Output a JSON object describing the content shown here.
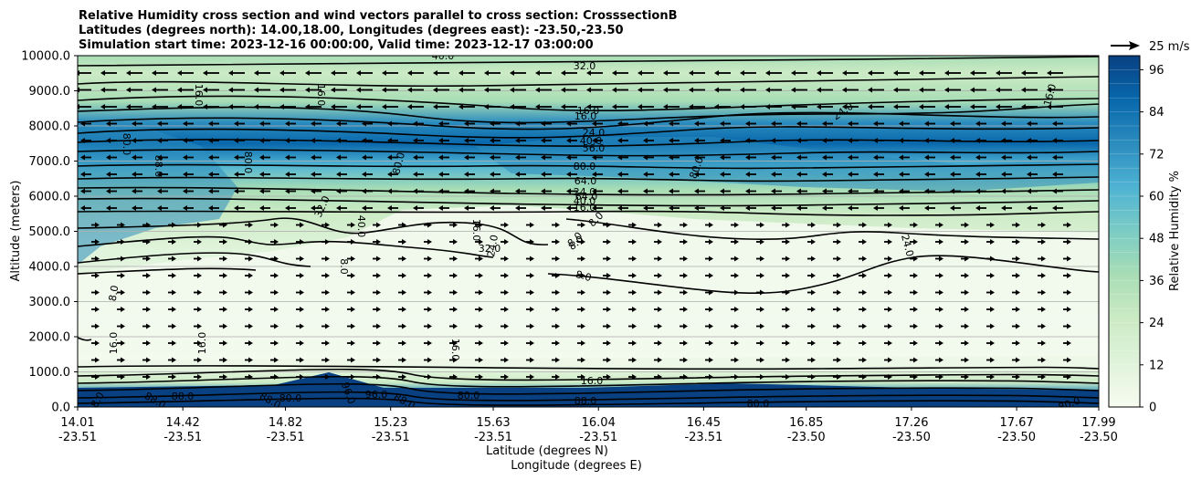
{
  "chart_data": {
    "type": "contour",
    "title_lines": [
      "Relative Humidity cross section and wind vectors parallel to cross section: CrosssectionB",
      "Latitudes (degrees north): 14.00,18.00, Longitudes (degrees east): -23.50,-23.50",
      "Simulation start time: 2023-12-16 00:00:00, Valid time: 2023-12-17 03:00:00"
    ],
    "ylabel": "Altitude (meters)",
    "xlabel": "Latitude (degrees N)",
    "xlabel2": "Longitude (degrees E)",
    "ylim": [
      0,
      10000
    ],
    "yticks": [
      "0.0",
      "1000.0",
      "2000.0",
      "3000.0",
      "4000.0",
      "5000.0",
      "6000.0",
      "7000.0",
      "8000.0",
      "9000.0",
      "10000.0"
    ],
    "ytick_values": [
      0,
      1000,
      2000,
      3000,
      4000,
      5000,
      6000,
      7000,
      8000,
      9000,
      10000
    ],
    "xticks": [
      {
        "lat": "14.01",
        "lon": "-23.51"
      },
      {
        "lat": "14.42",
        "lon": "-23.51"
      },
      {
        "lat": "14.82",
        "lon": "-23.51"
      },
      {
        "lat": "15.23",
        "lon": "-23.51"
      },
      {
        "lat": "15.63",
        "lon": "-23.51"
      },
      {
        "lat": "16.04",
        "lon": "-23.51"
      },
      {
        "lat": "16.45",
        "lon": "-23.51"
      },
      {
        "lat": "16.85",
        "lon": "-23.50"
      },
      {
        "lat": "17.26",
        "lon": "-23.50"
      },
      {
        "lat": "17.67",
        "lon": "-23.50"
      },
      {
        "lat": "17.99",
        "lon": "-23.50"
      }
    ],
    "xlim": [
      14.01,
      17.99
    ],
    "grid": "horizontal",
    "colorbar": {
      "label": "Relative Humidity %",
      "ticks": [
        "0",
        "12",
        "24",
        "36",
        "48",
        "60",
        "72",
        "84",
        "96"
      ],
      "tick_values": [
        0,
        12,
        24,
        36,
        48,
        60,
        72,
        84,
        96
      ],
      "range": [
        0,
        100
      ],
      "colormap": [
        "#f7fcf0",
        "#e0f3db",
        "#ccebc5",
        "#a8ddb5",
        "#7bccc4",
        "#4eb3d3",
        "#2b8cbe",
        "#0868ac",
        "#084081"
      ]
    },
    "quiver_key": {
      "label": "25 m/s",
      "speed": 25
    },
    "contour_labels": [
      "40.0",
      "32.0",
      "16.0",
      "16.0",
      "16.0",
      "16.0",
      "24.0",
      "16.0",
      "24.0",
      "40.0",
      "56.0",
      "64.0",
      "80.0",
      "64.0",
      "40.0",
      "24.0",
      "16.0",
      "8.0",
      "8.0",
      "88.0",
      "80.0",
      "80.0",
      "80.0",
      "80.0",
      "32.0",
      "40.0",
      "16.0",
      "24.0",
      "32.0",
      "8.0",
      "8.0",
      "8.0",
      "8.0",
      "24.0",
      "16.0",
      "16.0",
      "16.0",
      "16.0",
      "8.0",
      "88.0",
      "88.0",
      "88.0",
      "96.0",
      "96.0",
      "88.0",
      "80.0",
      "88.0",
      "80.0",
      "80.0",
      "80.0"
    ]
  }
}
